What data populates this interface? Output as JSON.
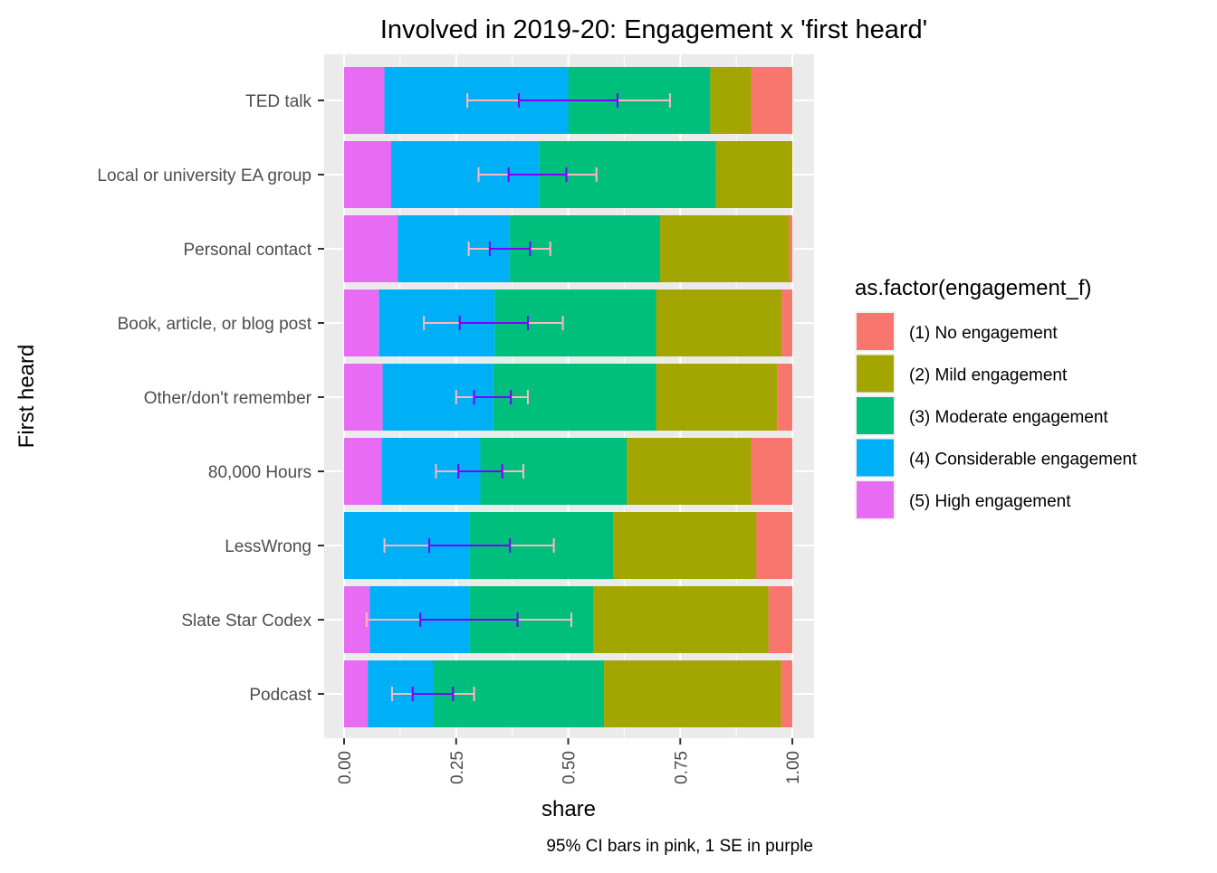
{
  "chart_data": {
    "type": "bar",
    "orientation": "horizontal",
    "stacked": true,
    "title": "Involved in 2019-20: Engagement x 'first heard'",
    "xlabel": "share",
    "ylabel": "First heard",
    "caption": "95% CI bars in pink, 1 SE in purple",
    "xlim": [
      0,
      1
    ],
    "xticks": [
      "0.00",
      "0.25",
      "0.50",
      "0.75",
      "1.00"
    ],
    "x_tick_values": [
      0,
      0.25,
      0.5,
      0.75,
      1.0
    ],
    "grid": true,
    "legend": {
      "title": "as.factor(engagement_f)",
      "placement": "right",
      "entries": [
        "(1) No engagement",
        "(2) Mild engagement",
        "(3) Moderate engagement",
        "(4) Considerable engagement",
        "(5) High engagement"
      ]
    },
    "categories": [
      "TED talk",
      "Local or university EA group",
      "Personal contact",
      "Book, article, or blog post",
      "Other/don't remember",
      "80,000 Hours",
      "LessWrong",
      "Slate Star Codex",
      "Podcast"
    ],
    "series": [
      {
        "name": "(5) High engagement",
        "color": "#E76BF3",
        "values": [
          0.09,
          0.105,
          0.12,
          0.078,
          0.086,
          0.084,
          0.0,
          0.057,
          0.053
        ]
      },
      {
        "name": "(4) Considerable engagement",
        "color": "#00B0F6",
        "values": [
          0.41,
          0.33,
          0.25,
          0.258,
          0.247,
          0.22,
          0.28,
          0.223,
          0.147
        ]
      },
      {
        "name": "(3) Moderate engagement",
        "color": "#00BF7D",
        "values": [
          0.317,
          0.395,
          0.335,
          0.36,
          0.363,
          0.327,
          0.32,
          0.277,
          0.38
        ]
      },
      {
        "name": "(2) Mild engagement",
        "color": "#A3A500",
        "values": [
          0.091,
          0.17,
          0.288,
          0.28,
          0.27,
          0.277,
          0.32,
          0.39,
          0.395
        ]
      },
      {
        "name": "(1) No engagement",
        "color": "#F8766D",
        "values": [
          0.092,
          0.0,
          0.007,
          0.024,
          0.034,
          0.092,
          0.08,
          0.053,
          0.025
        ]
      }
    ],
    "error_bars": [
      {
        "category": "TED talk",
        "ci95": [
          0.275,
          0.727
        ],
        "se": [
          0.39,
          0.61
        ]
      },
      {
        "category": "Local or university EA group",
        "ci95": [
          0.3,
          0.563
        ],
        "se": [
          0.367,
          0.496
        ]
      },
      {
        "category": "Personal contact",
        "ci95": [
          0.278,
          0.46
        ],
        "se": [
          0.325,
          0.415
        ]
      },
      {
        "category": "Book, article, or blog post",
        "ci95": [
          0.178,
          0.488
        ],
        "se": [
          0.258,
          0.41
        ]
      },
      {
        "category": "Other/don't remember",
        "ci95": [
          0.25,
          0.41
        ],
        "se": [
          0.29,
          0.372
        ]
      },
      {
        "category": "80,000 Hours",
        "ci95": [
          0.205,
          0.4
        ],
        "se": [
          0.255,
          0.353
        ]
      },
      {
        "category": "LessWrong",
        "ci95": [
          0.09,
          0.468
        ],
        "se": [
          0.19,
          0.37
        ]
      },
      {
        "category": "Slate Star Codex",
        "ci95": [
          0.05,
          0.507
        ],
        "se": [
          0.17,
          0.387
        ]
      },
      {
        "category": "Podcast",
        "ci95": [
          0.107,
          0.29
        ],
        "se": [
          0.153,
          0.243
        ]
      }
    ],
    "colors": {
      "ci_bar": "#FFB6C1",
      "se_bar": "#7F00FF",
      "panel_background": "#EBEBEB",
      "gridline": "#FFFFFF"
    }
  }
}
